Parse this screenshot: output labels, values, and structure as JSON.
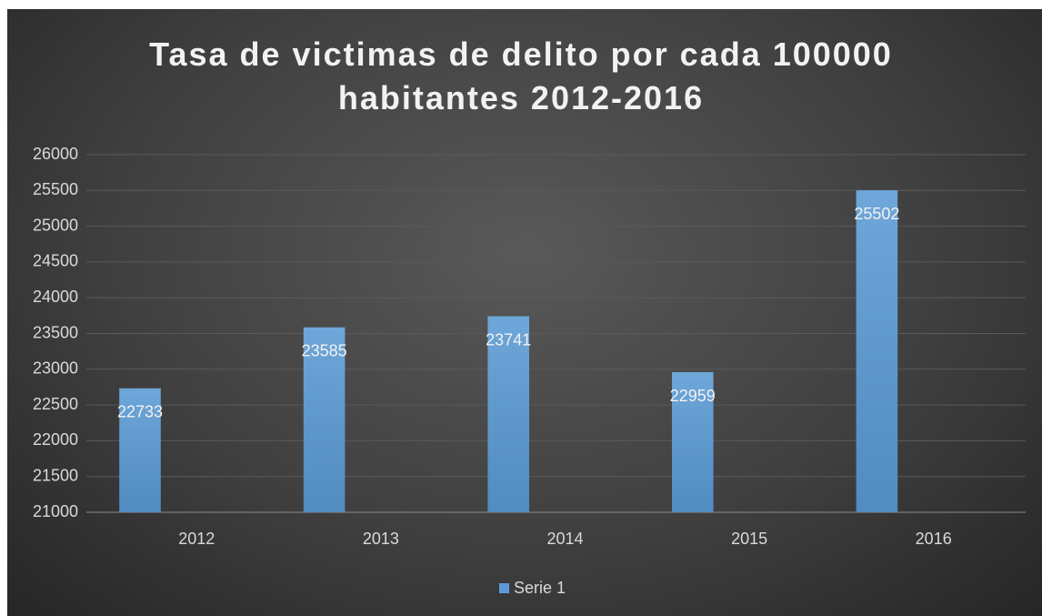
{
  "chart_data": {
    "type": "bar",
    "title": "Tasa de victimas de delito por cada 100000 habitantes 2012-2016",
    "categories": [
      "2012",
      "2013",
      "2014",
      "2015",
      "2016"
    ],
    "series": [
      {
        "name": "Serie 1",
        "color": "#5b9bd5",
        "values": [
          22733,
          23585,
          23741,
          22959,
          25502
        ]
      }
    ],
    "ylim": [
      21000,
      26000
    ],
    "yticks": [
      21000,
      21500,
      22000,
      22500,
      23000,
      23500,
      24000,
      24500,
      25000,
      25500,
      26000
    ],
    "grid": true,
    "legend": "bottom",
    "data_labels": true
  }
}
